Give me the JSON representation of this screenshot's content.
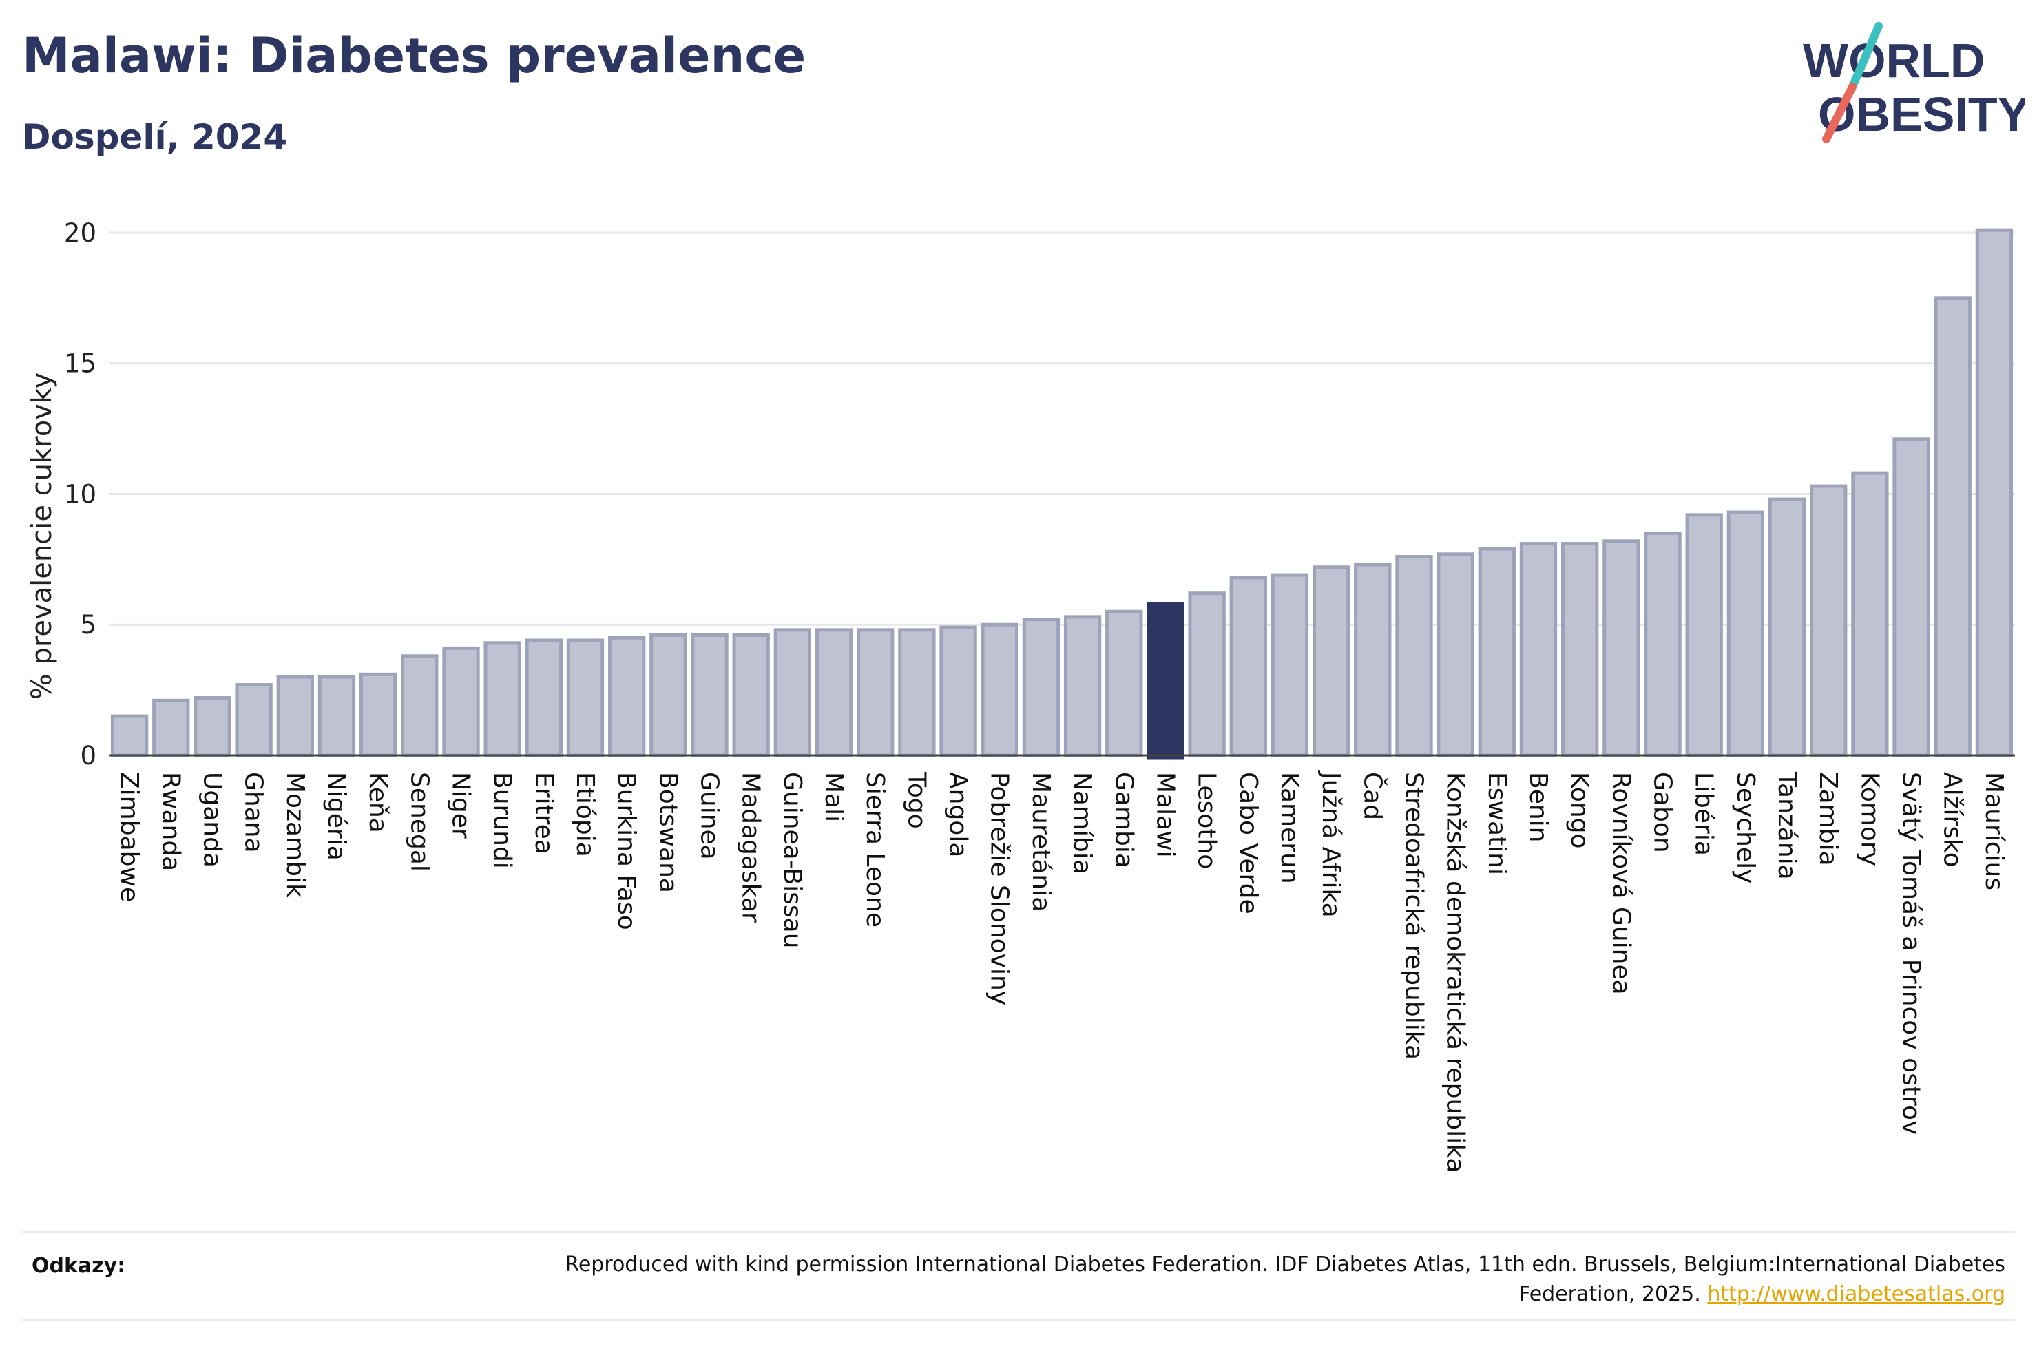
{
  "header": {
    "title": "Malawi: Diabetes prevalence",
    "subtitle": "Dospelí, 2024"
  },
  "logo": {
    "line1": "WORLD",
    "line2": "OBESITY"
  },
  "chart_data": {
    "type": "bar",
    "ylabel": "% prevalencie cukrovky",
    "xlabel": "",
    "ylim": [
      0,
      21
    ],
    "yticks": [
      0,
      5,
      10,
      15,
      20
    ],
    "grid": true,
    "highlight": "Malawi",
    "colors": {
      "bar": "#bfc3d1",
      "bar_edge": "#9ea3ba",
      "highlight": "#2d3561",
      "grid": "#e6e6ea"
    },
    "categories": [
      "Zimbabwe",
      "Rwanda",
      "Uganda",
      "Ghana",
      "Mozambik",
      "Nigéria",
      "Keňa",
      "Senegal",
      "Niger",
      "Burundi",
      "Eritrea",
      "Etiópia",
      "Burkina Faso",
      "Botswana",
      "Guinea",
      "Madagaskar",
      "Guinea-Bissau",
      "Mali",
      "Sierra Leone",
      "Togo",
      "Angola",
      "Pobrežie Slonoviny",
      "Mauretánia",
      "Namíbia",
      "Gambia",
      "Malawi",
      "Lesotho",
      "Cabo Verde",
      "Kamerun",
      "Južná Afrika",
      "Čad",
      "Stredoafrická republika",
      "Konžská demokratická republika",
      "Eswatini",
      "Benin",
      "Kongo",
      "Rovníková Guinea",
      "Gabon",
      "Libéria",
      "Seychely",
      "Tanzánia",
      "Zambia",
      "Komory",
      "Svätý Tomáš a Princov ostrov",
      "Alžírsko",
      "Maurícius"
    ],
    "values": [
      1.5,
      2.1,
      2.2,
      2.7,
      3.0,
      3.0,
      3.1,
      3.8,
      4.1,
      4.3,
      4.4,
      4.4,
      4.5,
      4.6,
      4.6,
      4.6,
      4.8,
      4.8,
      4.8,
      4.8,
      4.9,
      5.0,
      5.2,
      5.3,
      5.5,
      5.8,
      6.2,
      6.8,
      6.9,
      7.2,
      7.3,
      7.6,
      7.7,
      7.9,
      8.1,
      8.1,
      8.2,
      8.5,
      9.2,
      9.3,
      9.8,
      10.3,
      10.8,
      12.1,
      17.5,
      20.1
    ]
  },
  "footer": {
    "label": "Odkazy:",
    "text": "Reproduced with kind permission International Diabetes Federation. IDF Diabetes Atlas, 11th edn. Brussels, Belgium:International Diabetes Federation, 2025.",
    "link": "http://www.diabetesatlas.org"
  }
}
